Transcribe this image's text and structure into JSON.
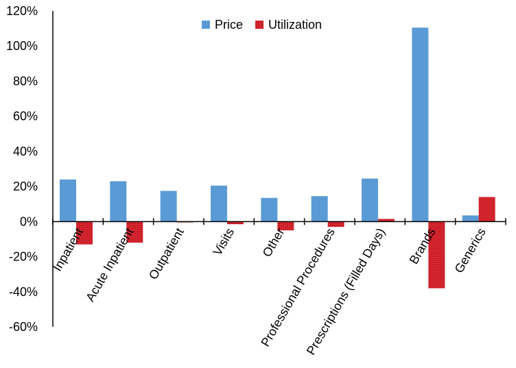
{
  "chart_data": {
    "type": "bar",
    "title": "",
    "xlabel": "",
    "ylabel": "",
    "categories": [
      "Inpatient",
      "Acute Inpatient",
      "Outpatient",
      "Visits",
      "Other",
      "Professional Procedures",
      "Prescriptions (Filled Days)",
      "Brands",
      "Generics"
    ],
    "series": [
      {
        "name": "Price",
        "color": "#5b9bd5",
        "values": [
          24,
          23,
          17.5,
          20.5,
          13.5,
          14.5,
          24.5,
          110.5,
          3.5
        ]
      },
      {
        "name": "Utilization",
        "color": "#d0202a",
        "values": [
          -13,
          -12,
          -0.5,
          -1.5,
          -5,
          -3,
          1.5,
          -38,
          14
        ]
      }
    ],
    "ylim": [
      -60,
      120
    ],
    "yticks": [
      -60,
      -40,
      -20,
      0,
      20,
      40,
      60,
      80,
      100,
      120
    ],
    "ytick_labels": [
      "-60%",
      "-40%",
      "-20%",
      "0%",
      "20%",
      "40%",
      "60%",
      "80%",
      "100%",
      "120%"
    ],
    "grid": false,
    "legend": {
      "placement": "top-center",
      "entries": [
        "Price",
        "Utilization"
      ]
    }
  }
}
